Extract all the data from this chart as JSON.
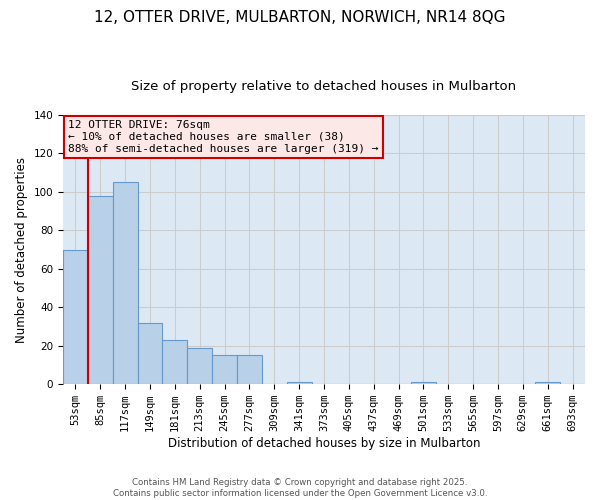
{
  "title": "12, OTTER DRIVE, MULBARTON, NORWICH, NR14 8QG",
  "subtitle": "Size of property relative to detached houses in Mulbarton",
  "xlabel": "Distribution of detached houses by size in Mulbarton",
  "ylabel": "Number of detached properties",
  "bar_labels": [
    "53sqm",
    "85sqm",
    "117sqm",
    "149sqm",
    "181sqm",
    "213sqm",
    "245sqm",
    "277sqm",
    "309sqm",
    "341sqm",
    "373sqm",
    "405sqm",
    "437sqm",
    "469sqm",
    "501sqm",
    "533sqm",
    "565sqm",
    "597sqm",
    "629sqm",
    "661sqm",
    "693sqm"
  ],
  "bar_values": [
    70,
    98,
    105,
    32,
    23,
    19,
    15,
    15,
    0,
    1,
    0,
    0,
    0,
    0,
    1,
    0,
    0,
    0,
    0,
    1,
    0
  ],
  "bar_color": "#b8d0e8",
  "bar_edgecolor": "#6699cc",
  "bar_linewidth": 0.8,
  "ylim": [
    0,
    140
  ],
  "yticks": [
    0,
    20,
    40,
    60,
    80,
    100,
    120,
    140
  ],
  "grid_color": "#cccccc",
  "bg_color": "#dce9f5",
  "property_line_color": "#cc0000",
  "annotation_text": "12 OTTER DRIVE: 76sqm\n← 10% of detached houses are smaller (38)\n88% of semi-detached houses are larger (319) →",
  "annotation_box_facecolor": "#fde8e8",
  "annotation_box_edgecolor": "#cc0000",
  "title_fontsize": 11,
  "subtitle_fontsize": 9.5,
  "axis_fontsize": 8.5,
  "tick_fontsize": 7.5,
  "annot_fontsize": 8,
  "footer_text": "Contains HM Land Registry data © Crown copyright and database right 2025.\nContains public sector information licensed under the Open Government Licence v3.0."
}
